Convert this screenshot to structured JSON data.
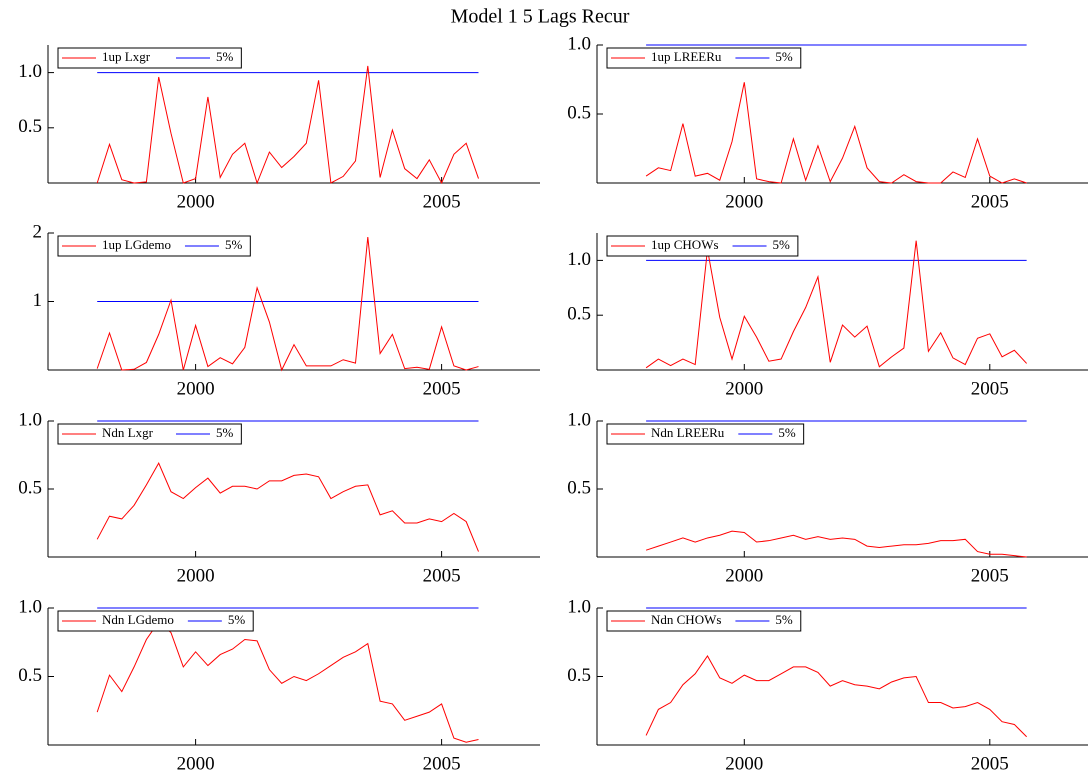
{
  "title": "Model 1 5 Lags Recur",
  "chart_data": [
    {
      "type": "line",
      "x": [
        1998,
        1998.25,
        1998.5,
        1998.75,
        1999,
        1999.25,
        1999.5,
        1999.75,
        2000,
        2000.25,
        2000.5,
        2000.75,
        2001,
        2001.25,
        2001.5,
        2001.75,
        2002,
        2002.25,
        2002.5,
        2002.75,
        2003,
        2003.25,
        2003.5,
        2003.75,
        2004,
        2004.25,
        2004.5,
        2004.75,
        2005,
        2005.25,
        2005.5,
        2005.75
      ],
      "xlim": [
        1997,
        2007
      ],
      "xticks": [
        2000,
        2005
      ],
      "ylim": [
        0,
        1.25
      ],
      "yticks": [
        0.5,
        {
          "value": 1,
          "label": "1.0"
        }
      ],
      "series": [
        {
          "name": "1up Lxgr",
          "color": "#ff0000",
          "values": [
            0,
            0.35,
            0.03,
            0,
            0.01,
            0.96,
            0.45,
            0,
            0.04,
            0.78,
            0.05,
            0.26,
            0.36,
            0,
            0.28,
            0.14,
            0.24,
            0.36,
            0.93,
            0,
            0.06,
            0.2,
            1.06,
            0.05,
            0.48,
            0.13,
            0.04,
            0.21,
            0,
            0.26,
            0.36,
            0.04
          ]
        },
        {
          "name": "5%",
          "color": "#0000ff",
          "values": [
            1,
            1,
            1,
            1,
            1,
            1,
            1,
            1,
            1,
            1,
            1,
            1,
            1,
            1,
            1,
            1,
            1,
            1,
            1,
            1,
            1,
            1,
            1,
            1,
            1,
            1,
            1,
            1,
            1,
            1,
            1,
            1
          ]
        }
      ]
    },
    {
      "type": "line",
      "x": [
        1998,
        1998.25,
        1998.5,
        1998.75,
        1999,
        1999.25,
        1999.5,
        1999.75,
        2000,
        2000.25,
        2000.5,
        2000.75,
        2001,
        2001.25,
        2001.5,
        2001.75,
        2002,
        2002.25,
        2002.5,
        2002.75,
        2003,
        2003.25,
        2003.5,
        2003.75,
        2004,
        2004.25,
        2004.5,
        2004.75,
        2005,
        2005.25,
        2005.5,
        2005.75
      ],
      "xlim": [
        1997,
        2007
      ],
      "xticks": [
        2000,
        2005
      ],
      "ylim": [
        0,
        1
      ],
      "yticks": [
        0.5,
        {
          "value": 1,
          "label": "1.0"
        }
      ],
      "series": [
        {
          "name": "1up LREERu",
          "color": "#ff0000",
          "values": [
            0.05,
            0.11,
            0.09,
            0.43,
            0.05,
            0.07,
            0.02,
            0.3,
            0.73,
            0.03,
            0.01,
            0,
            0.32,
            0.02,
            0.27,
            0.01,
            0.18,
            0.41,
            0.11,
            0.01,
            0,
            0.06,
            0.01,
            0,
            0,
            0.08,
            0.04,
            0.32,
            0.05,
            0,
            0.03,
            0
          ]
        },
        {
          "name": "5%",
          "color": "#0000ff",
          "values": [
            1,
            1,
            1,
            1,
            1,
            1,
            1,
            1,
            1,
            1,
            1,
            1,
            1,
            1,
            1,
            1,
            1,
            1,
            1,
            1,
            1,
            1,
            1,
            1,
            1,
            1,
            1,
            1,
            1,
            1,
            1,
            1
          ]
        }
      ]
    },
    {
      "type": "line",
      "x": [
        1998,
        1998.25,
        1998.5,
        1998.75,
        1999,
        1999.25,
        1999.5,
        1999.75,
        2000,
        2000.25,
        2000.5,
        2000.75,
        2001,
        2001.25,
        2001.5,
        2001.75,
        2002,
        2002.25,
        2002.5,
        2002.75,
        2003,
        2003.25,
        2003.5,
        2003.75,
        2004,
        2004.25,
        2004.5,
        2004.75,
        2005,
        2005.25,
        2005.5,
        2005.75
      ],
      "xlim": [
        1997,
        2007
      ],
      "xticks": [
        2000,
        2005
      ],
      "ylim": [
        0,
        2
      ],
      "yticks": [
        1,
        2
      ],
      "series": [
        {
          "name": "1up LGdemo",
          "color": "#ff0000",
          "values": [
            0.02,
            0.54,
            0,
            0.01,
            0.11,
            0.52,
            1.02,
            0,
            0.65,
            0.05,
            0.18,
            0.09,
            0.33,
            1.2,
            0.7,
            0,
            0.37,
            0.06,
            0.06,
            0.06,
            0.15,
            0.1,
            1.94,
            0.24,
            0.52,
            0.02,
            0.04,
            0.01,
            0.63,
            0.06,
            0,
            0.05
          ]
        },
        {
          "name": "5%",
          "color": "#0000ff",
          "values": [
            1,
            1,
            1,
            1,
            1,
            1,
            1,
            1,
            1,
            1,
            1,
            1,
            1,
            1,
            1,
            1,
            1,
            1,
            1,
            1,
            1,
            1,
            1,
            1,
            1,
            1,
            1,
            1,
            1,
            1,
            1,
            1
          ]
        }
      ]
    },
    {
      "type": "line",
      "x": [
        1998,
        1998.25,
        1998.5,
        1998.75,
        1999,
        1999.25,
        1999.5,
        1999.75,
        2000,
        2000.25,
        2000.5,
        2000.75,
        2001,
        2001.25,
        2001.5,
        2001.75,
        2002,
        2002.25,
        2002.5,
        2002.75,
        2003,
        2003.25,
        2003.5,
        2003.75,
        2004,
        2004.25,
        2004.5,
        2004.75,
        2005,
        2005.25,
        2005.5,
        2005.75
      ],
      "xlim": [
        1997,
        2007
      ],
      "xticks": [
        2000,
        2005
      ],
      "ylim": [
        0,
        1.25
      ],
      "yticks": [
        0.5,
        {
          "value": 1,
          "label": "1.0"
        }
      ],
      "series": [
        {
          "name": "1up CHOWs",
          "color": "#ff0000",
          "values": [
            0.02,
            0.1,
            0.04,
            0.1,
            0.05,
            1.1,
            0.48,
            0.1,
            0.49,
            0.3,
            0.08,
            0.1,
            0.35,
            0.57,
            0.85,
            0.07,
            0.41,
            0.3,
            0.4,
            0.03,
            0.12,
            0.2,
            1.18,
            0.17,
            0.34,
            0.11,
            0.05,
            0.29,
            0.33,
            0.12,
            0.18,
            0.06
          ]
        },
        {
          "name": "5%",
          "color": "#0000ff",
          "values": [
            1,
            1,
            1,
            1,
            1,
            1,
            1,
            1,
            1,
            1,
            1,
            1,
            1,
            1,
            1,
            1,
            1,
            1,
            1,
            1,
            1,
            1,
            1,
            1,
            1,
            1,
            1,
            1,
            1,
            1,
            1,
            1
          ]
        }
      ]
    },
    {
      "type": "line",
      "x": [
        1998,
        1998.25,
        1998.5,
        1998.75,
        1999,
        1999.25,
        1999.5,
        1999.75,
        2000,
        2000.25,
        2000.5,
        2000.75,
        2001,
        2001.25,
        2001.5,
        2001.75,
        2002,
        2002.25,
        2002.5,
        2002.75,
        2003,
        2003.25,
        2003.5,
        2003.75,
        2004,
        2004.25,
        2004.5,
        2004.75,
        2005,
        2005.25,
        2005.5,
        2005.75
      ],
      "xlim": [
        1997,
        2007
      ],
      "xticks": [
        2000,
        2005
      ],
      "ylim": [
        0,
        1
      ],
      "yticks": [
        0.5,
        {
          "value": 1,
          "label": "1.0"
        }
      ],
      "series": [
        {
          "name": "Ndn Lxgr",
          "color": "#ff0000",
          "values": [
            0.13,
            0.3,
            0.28,
            0.38,
            0.53,
            0.69,
            0.48,
            0.43,
            0.51,
            0.58,
            0.47,
            0.52,
            0.52,
            0.5,
            0.56,
            0.56,
            0.6,
            0.61,
            0.59,
            0.43,
            0.48,
            0.52,
            0.53,
            0.31,
            0.34,
            0.25,
            0.25,
            0.28,
            0.26,
            0.32,
            0.26,
            0.04
          ]
        },
        {
          "name": "5%",
          "color": "#0000ff",
          "values": [
            1,
            1,
            1,
            1,
            1,
            1,
            1,
            1,
            1,
            1,
            1,
            1,
            1,
            1,
            1,
            1,
            1,
            1,
            1,
            1,
            1,
            1,
            1,
            1,
            1,
            1,
            1,
            1,
            1,
            1,
            1,
            1
          ]
        }
      ]
    },
    {
      "type": "line",
      "x": [
        1998,
        1998.25,
        1998.5,
        1998.75,
        1999,
        1999.25,
        1999.5,
        1999.75,
        2000,
        2000.25,
        2000.5,
        2000.75,
        2001,
        2001.25,
        2001.5,
        2001.75,
        2002,
        2002.25,
        2002.5,
        2002.75,
        2003,
        2003.25,
        2003.5,
        2003.75,
        2004,
        2004.25,
        2004.5,
        2004.75,
        2005,
        2005.25,
        2005.5,
        2005.75
      ],
      "xlim": [
        1997,
        2007
      ],
      "xticks": [
        2000,
        2005
      ],
      "ylim": [
        0,
        1
      ],
      "yticks": [
        0.5,
        {
          "value": 1,
          "label": "1.0"
        }
      ],
      "series": [
        {
          "name": "Ndn LREERu",
          "color": "#ff0000",
          "values": [
            0.05,
            0.08,
            0.11,
            0.14,
            0.11,
            0.14,
            0.16,
            0.19,
            0.18,
            0.11,
            0.12,
            0.14,
            0.16,
            0.13,
            0.15,
            0.13,
            0.14,
            0.13,
            0.08,
            0.07,
            0.08,
            0.09,
            0.09,
            0.1,
            0.12,
            0.12,
            0.13,
            0.04,
            0.02,
            0.02,
            0.01,
            0
          ]
        },
        {
          "name": "5%",
          "color": "#0000ff",
          "values": [
            1,
            1,
            1,
            1,
            1,
            1,
            1,
            1,
            1,
            1,
            1,
            1,
            1,
            1,
            1,
            1,
            1,
            1,
            1,
            1,
            1,
            1,
            1,
            1,
            1,
            1,
            1,
            1,
            1,
            1,
            1,
            1
          ]
        }
      ]
    },
    {
      "type": "line",
      "x": [
        1998,
        1998.25,
        1998.5,
        1998.75,
        1999,
        1999.25,
        1999.5,
        1999.75,
        2000,
        2000.25,
        2000.5,
        2000.75,
        2001,
        2001.25,
        2001.5,
        2001.75,
        2002,
        2002.25,
        2002.5,
        2002.75,
        2003,
        2003.25,
        2003.5,
        2003.75,
        2004,
        2004.25,
        2004.5,
        2004.75,
        2005,
        2005.25,
        2005.5,
        2005.75
      ],
      "xlim": [
        1997,
        2007
      ],
      "xticks": [
        2000,
        2005
      ],
      "ylim": [
        0,
        1
      ],
      "yticks": [
        0.5,
        {
          "value": 1,
          "label": "1.0"
        }
      ],
      "series": [
        {
          "name": "Ndn LGdemo",
          "color": "#ff0000",
          "values": [
            0.24,
            0.51,
            0.39,
            0.57,
            0.77,
            0.9,
            0.82,
            0.57,
            0.68,
            0.58,
            0.66,
            0.7,
            0.77,
            0.76,
            0.55,
            0.45,
            0.5,
            0.47,
            0.52,
            0.58,
            0.64,
            0.68,
            0.74,
            0.32,
            0.3,
            0.18,
            0.21,
            0.24,
            0.3,
            0.05,
            0.02,
            0.04
          ]
        },
        {
          "name": "5%",
          "color": "#0000ff",
          "values": [
            1,
            1,
            1,
            1,
            1,
            1,
            1,
            1,
            1,
            1,
            1,
            1,
            1,
            1,
            1,
            1,
            1,
            1,
            1,
            1,
            1,
            1,
            1,
            1,
            1,
            1,
            1,
            1,
            1,
            1,
            1,
            1
          ]
        }
      ]
    },
    {
      "type": "line",
      "x": [
        1998,
        1998.25,
        1998.5,
        1998.75,
        1999,
        1999.25,
        1999.5,
        1999.75,
        2000,
        2000.25,
        2000.5,
        2000.75,
        2001,
        2001.25,
        2001.5,
        2001.75,
        2002,
        2002.25,
        2002.5,
        2002.75,
        2003,
        2003.25,
        2003.5,
        2003.75,
        2004,
        2004.25,
        2004.5,
        2004.75,
        2005,
        2005.25,
        2005.5,
        2005.75
      ],
      "xlim": [
        1997,
        2007
      ],
      "xticks": [
        2000,
        2005
      ],
      "ylim": [
        0,
        1
      ],
      "yticks": [
        0.5,
        {
          "value": 1,
          "label": "1.0"
        }
      ],
      "series": [
        {
          "name": "Ndn CHOWs",
          "color": "#ff0000",
          "values": [
            0.07,
            0.26,
            0.31,
            0.44,
            0.52,
            0.65,
            0.49,
            0.45,
            0.51,
            0.47,
            0.47,
            0.52,
            0.57,
            0.57,
            0.53,
            0.43,
            0.47,
            0.44,
            0.43,
            0.41,
            0.46,
            0.49,
            0.5,
            0.31,
            0.31,
            0.27,
            0.28,
            0.31,
            0.26,
            0.17,
            0.15,
            0.06
          ]
        },
        {
          "name": "5%",
          "color": "#0000ff",
          "values": [
            1,
            1,
            1,
            1,
            1,
            1,
            1,
            1,
            1,
            1,
            1,
            1,
            1,
            1,
            1,
            1,
            1,
            1,
            1,
            1,
            1,
            1,
            1,
            1,
            1,
            1,
            1,
            1,
            1,
            1,
            1,
            1
          ]
        }
      ]
    }
  ]
}
